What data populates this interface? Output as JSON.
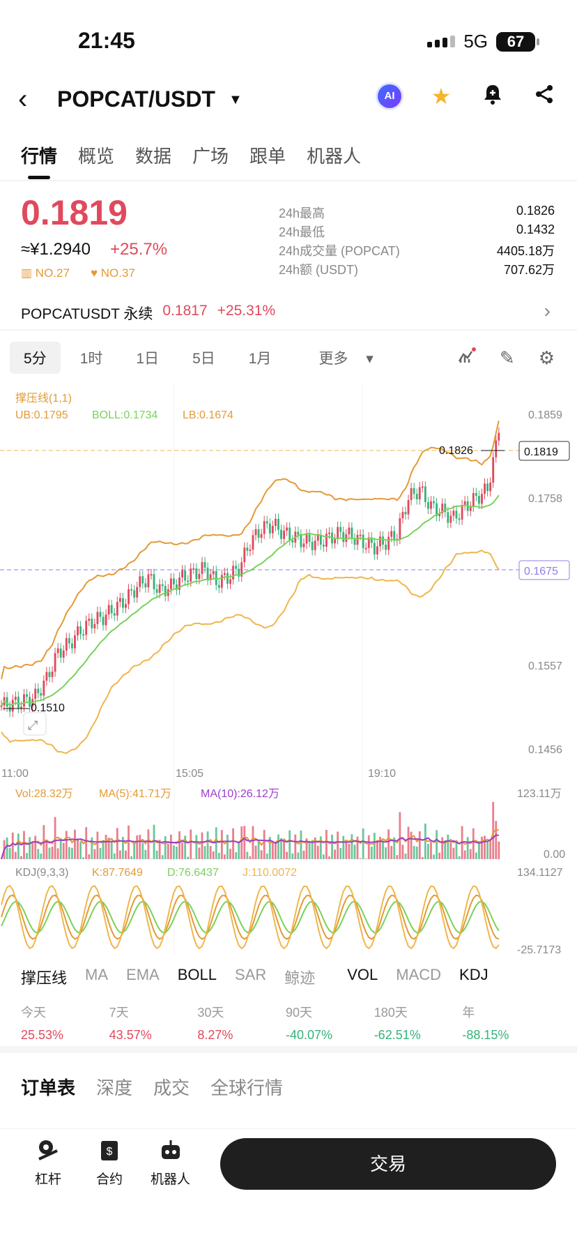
{
  "status": {
    "time": "21:45",
    "network": "5G",
    "battery": "67"
  },
  "header": {
    "pair": "POPCAT/USDT",
    "ai_label": "AI"
  },
  "tabs": [
    "行情",
    "概览",
    "数据",
    "广场",
    "跟单",
    "机器人"
  ],
  "price": {
    "last": "0.1819",
    "cny": "≈¥1.2940",
    "change": "+25.7%",
    "rank1": "NO.27",
    "rank2": "NO.37"
  },
  "stats": [
    {
      "label": "24h最高",
      "value": "0.1826"
    },
    {
      "label": "24h最低",
      "value": "0.1432"
    },
    {
      "label": "24h成交量 (POPCAT)",
      "value": "4405.18万"
    },
    {
      "label": "24h额 (USDT)",
      "value": "707.62万"
    }
  ],
  "perp": {
    "name": "POPCATUSDT 永续",
    "price": "0.1817",
    "change": "+25.31%"
  },
  "timeframes": [
    "5分",
    "1时",
    "1日",
    "5日",
    "1月",
    "更多"
  ],
  "chart_labels": {
    "indicator": "撑压线(1,1)",
    "ub": "UB:0.1795",
    "boll": "BOLL:0.1734",
    "lb": "LB:0.1674",
    "y_ticks": [
      "0.1859",
      "0.1758",
      "0.1557",
      "0.1456"
    ],
    "y_mid": "0.1675",
    "last_tag": "0.1819",
    "high_tag": "0.1826",
    "low_tag": "0.1510",
    "x_ticks": [
      "11:00",
      "15:05",
      "19:10"
    ],
    "vol": "Vol:28.32万",
    "ma5": "MA(5):41.71万",
    "ma10": "MA(10):26.12万",
    "vol_top": "123.11万",
    "vol_bottom": "0.00",
    "kdj": "KDJ(9,3,3)",
    "k": "K:87.7649",
    "d": "D:76.6437",
    "j": "J:110.0072",
    "kdj_top": "134.1127",
    "kdj_bottom": "-25.7173"
  },
  "chart_data": {
    "type": "candlestick",
    "x_ticks": [
      "11:00",
      "15:05",
      "19:10"
    ],
    "ylim": [
      0.1456,
      0.1859
    ],
    "close_approx": [
      0.151,
      0.1512,
      0.1515,
      0.152,
      0.154,
      0.157,
      0.158,
      0.1595,
      0.1605,
      0.161,
      0.162,
      0.163,
      0.1645,
      0.1655,
      0.164,
      0.1645,
      0.1655,
      0.166,
      0.1665,
      0.165,
      0.1655,
      0.1665,
      0.1695,
      0.171,
      0.1715,
      0.1705,
      0.17,
      0.1695,
      0.1695,
      0.17,
      0.1705,
      0.1702,
      0.1695,
      0.169,
      0.1695,
      0.1705,
      0.1745,
      0.1755,
      0.1735,
      0.173,
      0.1722,
      0.1735,
      0.1745,
      0.1755,
      0.1819
    ],
    "last": 0.1819,
    "high": 0.1826,
    "low": 0.151
  },
  "indicators": [
    "撑压线",
    "MA",
    "EMA",
    "BOLL",
    "SAR",
    "鲸迹",
    "VOL",
    "MACD",
    "KDJ"
  ],
  "indicators_on": [
    "撑压线",
    "BOLL",
    "VOL",
    "KDJ"
  ],
  "performance": [
    {
      "label": "今天",
      "value": "25.53%"
    },
    {
      "label": "7天",
      "value": "43.57%"
    },
    {
      "label": "30天",
      "value": "8.27%"
    },
    {
      "label": "90天",
      "value": "-40.07%"
    },
    {
      "label": "180天",
      "value": "-62.51%"
    },
    {
      "label": "年",
      "value": "-88.15%"
    }
  ],
  "book_tabs": [
    "订单表",
    "深度",
    "成交",
    "全球行情"
  ],
  "bottom": {
    "leverage": "杠杆",
    "contract": "合约",
    "robot": "机器人",
    "trade": "交易"
  }
}
